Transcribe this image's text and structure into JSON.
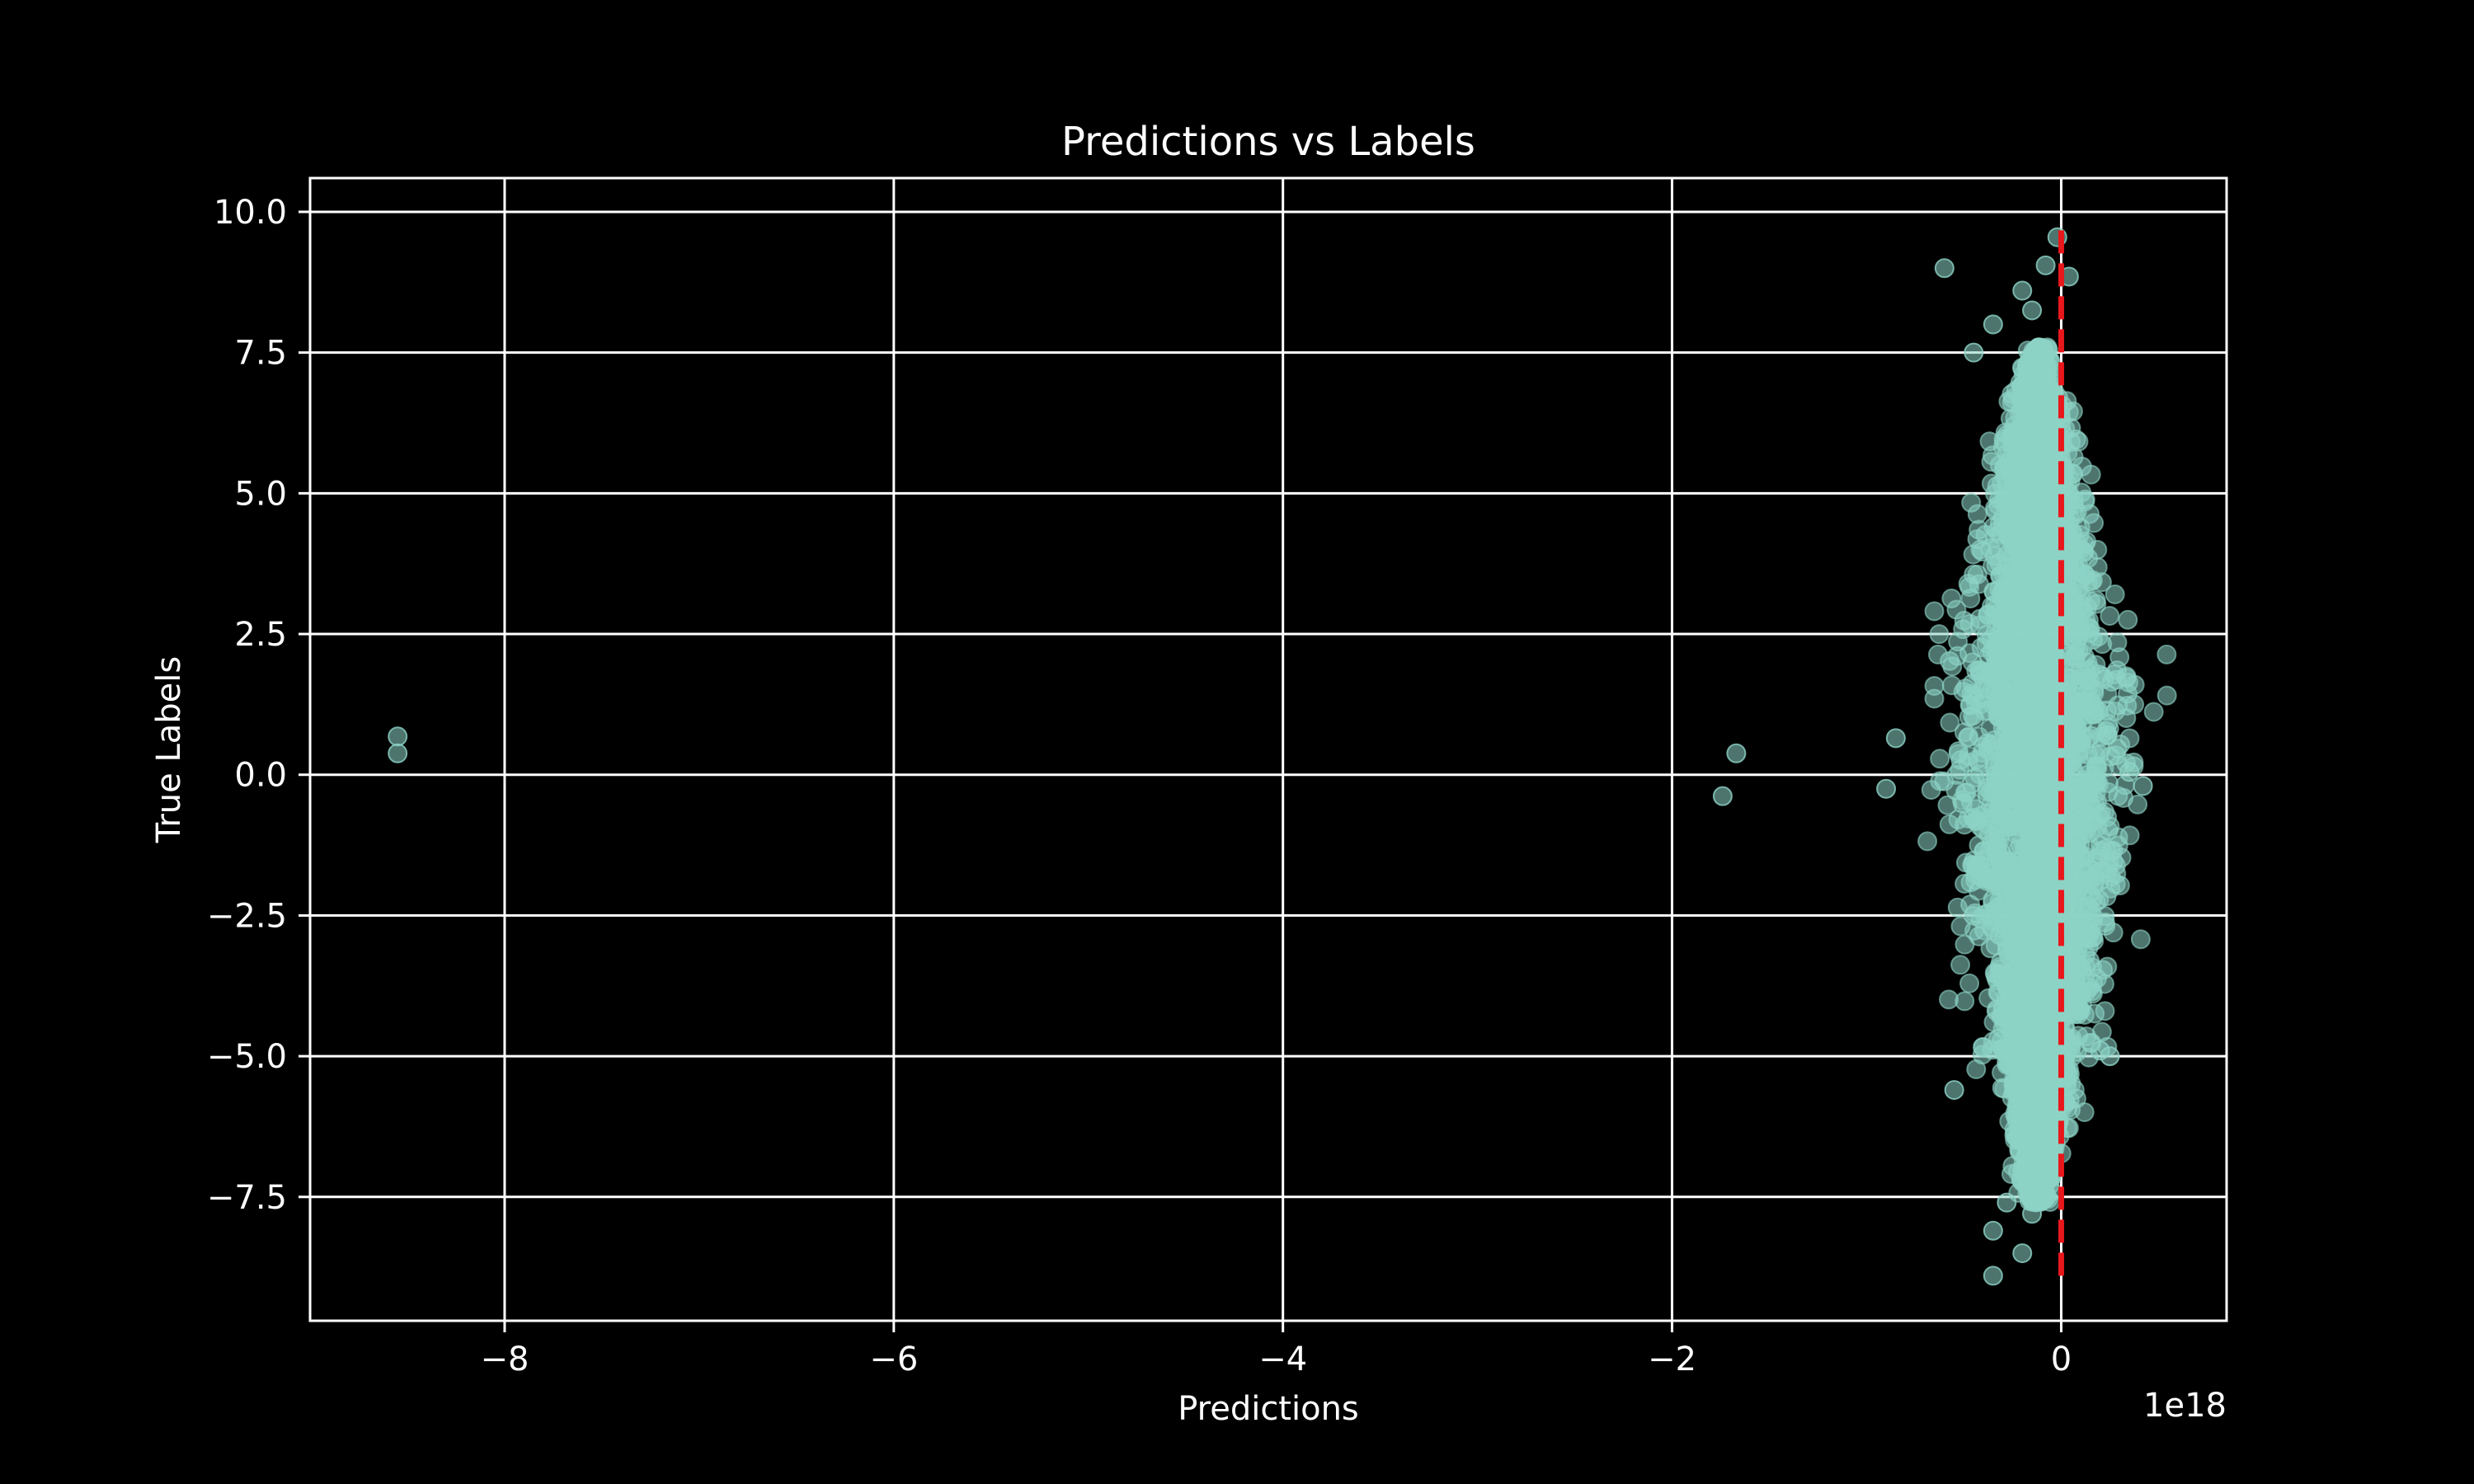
{
  "chart_data": {
    "type": "scatter",
    "title": "Predictions vs Labels",
    "xlabel": "Predictions",
    "ylabel": "True Labels",
    "x_offset_label": "1e18",
    "x_scale_factor": 1e+18,
    "xlim": [
      -9.0,
      0.85
    ],
    "ylim": [
      -9.7,
      10.6
    ],
    "x_ticks": [
      {
        "value": -8,
        "label": "−8"
      },
      {
        "value": -6,
        "label": "−6"
      },
      {
        "value": -4,
        "label": "−4"
      },
      {
        "value": -2,
        "label": "−2"
      },
      {
        "value": 0,
        "label": "0"
      }
    ],
    "y_ticks": [
      {
        "value": 10.0,
        "label": "10.0"
      },
      {
        "value": 7.5,
        "label": "7.5"
      },
      {
        "value": 5.0,
        "label": "5.0"
      },
      {
        "value": 2.5,
        "label": "2.5"
      },
      {
        "value": 0.0,
        "label": "0.0"
      },
      {
        "value": -2.5,
        "label": "−2.5"
      },
      {
        "value": -5.0,
        "label": "−5.0"
      },
      {
        "value": -7.5,
        "label": "−7.5"
      }
    ],
    "grid": true,
    "point_color": "#8dd3c7",
    "reference_line": {
      "x": [
        0.0,
        0.0
      ],
      "y": [
        -8.9,
        9.7
      ],
      "color": "#e8171b",
      "style": "dashed"
    },
    "outliers": [
      {
        "x": -8.55,
        "y": 0.68
      },
      {
        "x": -8.55,
        "y": 0.38
      },
      {
        "x": -1.67,
        "y": 0.38
      },
      {
        "x": -1.74,
        "y": -0.38
      },
      {
        "x": -0.02,
        "y": 9.55
      },
      {
        "x": -0.6,
        "y": 9.0
      },
      {
        "x": 0.04,
        "y": 8.85
      },
      {
        "x": -0.08,
        "y": 9.05
      },
      {
        "x": -0.2,
        "y": 8.6
      },
      {
        "x": -0.35,
        "y": 8.0
      },
      {
        "x": -0.15,
        "y": 8.25
      },
      {
        "x": -0.45,
        "y": 7.5
      },
      {
        "x": -0.85,
        "y": 0.65
      },
      {
        "x": -0.9,
        "y": -0.25
      },
      {
        "x": 0.42,
        "y": -0.2
      },
      {
        "x": 0.35,
        "y": 0.05
      },
      {
        "x": -0.55,
        "y": -5.6
      },
      {
        "x": -0.35,
        "y": -8.1
      },
      {
        "x": -0.2,
        "y": -8.5
      },
      {
        "x": -0.35,
        "y": -8.9
      },
      {
        "x": -0.15,
        "y": -7.8
      },
      {
        "x": -0.28,
        "y": -7.6
      },
      {
        "x": -0.05,
        "y": -7.4
      },
      {
        "x": 0.2,
        "y": -4.9
      },
      {
        "x": 0.25,
        "y": -5.0
      }
    ],
    "bulk": {
      "description_points": 4000,
      "center_x": -0.12,
      "x_spread": 0.22,
      "y_min": -7.6,
      "y_max": 7.6
    }
  }
}
